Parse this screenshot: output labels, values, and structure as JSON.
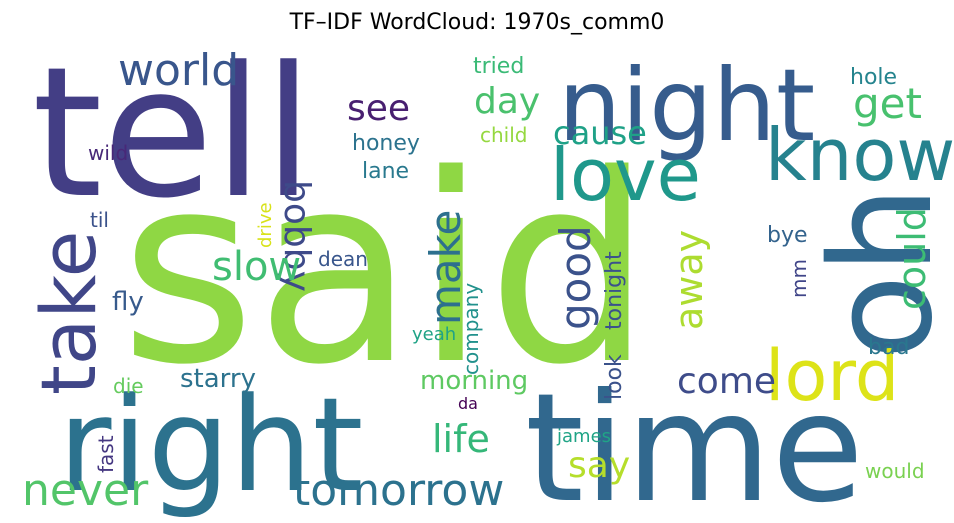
{
  "chart_data": {
    "type": "wordcloud",
    "title": "TF–IDF WordCloud: 1970s_comm0",
    "words": [
      {
        "text": "said",
        "color": "#8fd744"
      },
      {
        "text": "tell",
        "color": "#433e85"
      },
      {
        "text": "time",
        "color": "#31688e"
      },
      {
        "text": "night",
        "color": "#365c8d"
      },
      {
        "text": "right",
        "color": "#2c728e"
      },
      {
        "text": "oh",
        "color": "#31688e"
      },
      {
        "text": "love",
        "color": "#1f988b"
      },
      {
        "text": "know",
        "color": "#26828e"
      },
      {
        "text": "take",
        "color": "#404688"
      },
      {
        "text": "lord",
        "color": "#dde318"
      },
      {
        "text": "world",
        "color": "#39568c"
      },
      {
        "text": "tomorrow",
        "color": "#2c728e"
      },
      {
        "text": "never",
        "color": "#52c569"
      },
      {
        "text": "bobby",
        "color": "#3e4a89"
      },
      {
        "text": "see",
        "color": "#481f70"
      },
      {
        "text": "day",
        "color": "#4ac16d"
      },
      {
        "text": "get",
        "color": "#48c16e"
      },
      {
        "text": "cause",
        "color": "#1fa187"
      },
      {
        "text": "slow",
        "color": "#40bd72"
      },
      {
        "text": "make",
        "color": "#2d708e"
      },
      {
        "text": "good",
        "color": "#3b528b"
      },
      {
        "text": "could",
        "color": "#3dbc74"
      },
      {
        "text": "away",
        "color": "#addc30"
      },
      {
        "text": "come",
        "color": "#3e4c8a"
      },
      {
        "text": "life",
        "color": "#35b779"
      },
      {
        "text": "say",
        "color": "#b5de2b"
      },
      {
        "text": "morning",
        "color": "#5ec962"
      },
      {
        "text": "starry",
        "color": "#2c728e"
      },
      {
        "text": "fly",
        "color": "#375a8c"
      },
      {
        "text": "honey",
        "color": "#2c738e"
      },
      {
        "text": "lane",
        "color": "#29798e"
      },
      {
        "text": "tried",
        "color": "#3aba76"
      },
      {
        "text": "child",
        "color": "#95d840"
      },
      {
        "text": "hole",
        "color": "#25848e"
      },
      {
        "text": "wild",
        "color": "#482878"
      },
      {
        "text": "til",
        "color": "#3b528b"
      },
      {
        "text": "drive",
        "color": "#d8e219"
      },
      {
        "text": "dean",
        "color": "#39568c"
      },
      {
        "text": "tonight",
        "color": "#3b528b"
      },
      {
        "text": "look",
        "color": "#3b528b"
      },
      {
        "text": "company",
        "color": "#21918c"
      },
      {
        "text": "yeah",
        "color": "#20a386"
      },
      {
        "text": "bye",
        "color": "#33638d"
      },
      {
        "text": "mm",
        "color": "#404588"
      },
      {
        "text": "bad",
        "color": "#2a778e"
      },
      {
        "text": "die",
        "color": "#65cb5e"
      },
      {
        "text": "da",
        "color": "#440154"
      },
      {
        "text": "fast",
        "color": "#453781"
      },
      {
        "text": "james",
        "color": "#20a486"
      },
      {
        "text": "would",
        "color": "#7ad151"
      }
    ]
  }
}
